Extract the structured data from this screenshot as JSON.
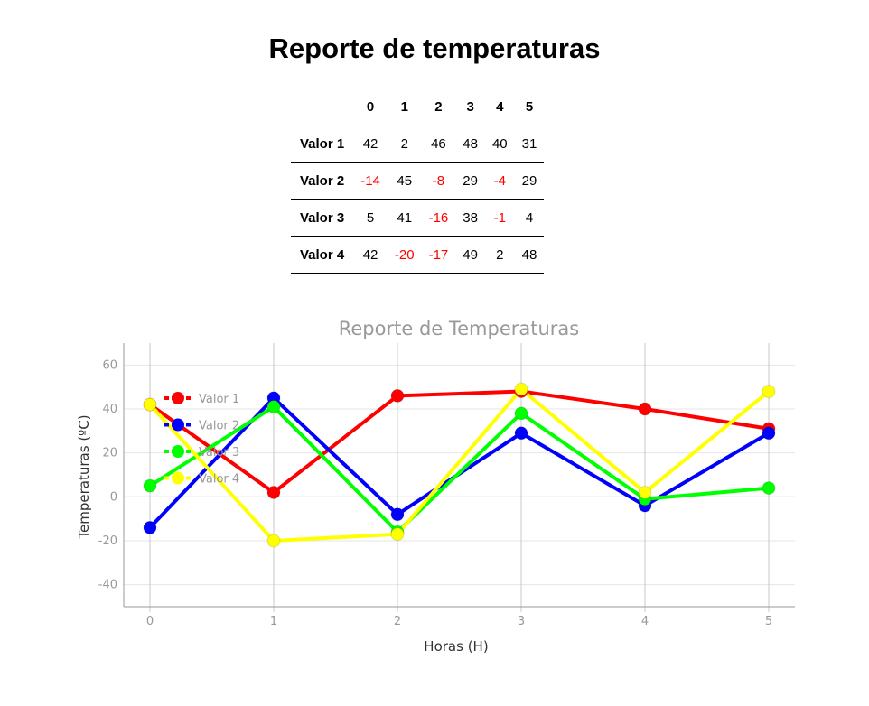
{
  "page": {
    "title": "Reporte de temperaturas"
  },
  "table": {
    "columns": [
      "0",
      "1",
      "2",
      "3",
      "4",
      "5"
    ],
    "rows": [
      {
        "label": "Valor 1",
        "values": [
          42,
          2,
          46,
          48,
          40,
          31
        ]
      },
      {
        "label": "Valor 2",
        "values": [
          -14,
          45,
          -8,
          29,
          -4,
          29
        ]
      },
      {
        "label": "Valor 3",
        "values": [
          5,
          41,
          -16,
          38,
          -1,
          4
        ]
      },
      {
        "label": "Valor 4",
        "values": [
          42,
          -20,
          -17,
          49,
          2,
          48
        ]
      }
    ],
    "negative_color": "#ff0000"
  },
  "chart_data": {
    "type": "line",
    "title": "Reporte de Temperaturas",
    "xlabel": "Horas (H)",
    "ylabel": "Temperaturas (ºC)",
    "x": [
      0,
      1,
      2,
      3,
      4,
      5
    ],
    "ylim": [
      -50,
      70
    ],
    "yticks": [
      -40,
      -20,
      0,
      20,
      40,
      60
    ],
    "grid": true,
    "legend_position": "top-left",
    "series": [
      {
        "name": "Valor 1",
        "color": "#ff0000",
        "values": [
          42,
          2,
          46,
          48,
          40,
          31
        ]
      },
      {
        "name": "Valor 2",
        "color": "#0000ff",
        "values": [
          -14,
          45,
          -8,
          29,
          -4,
          29
        ]
      },
      {
        "name": "Valor 3",
        "color": "#00ff00",
        "values": [
          5,
          41,
          -16,
          38,
          -1,
          4
        ]
      },
      {
        "name": "Valor 4",
        "color": "#ffff00",
        "values": [
          42,
          -20,
          -17,
          49,
          2,
          48
        ]
      }
    ]
  }
}
